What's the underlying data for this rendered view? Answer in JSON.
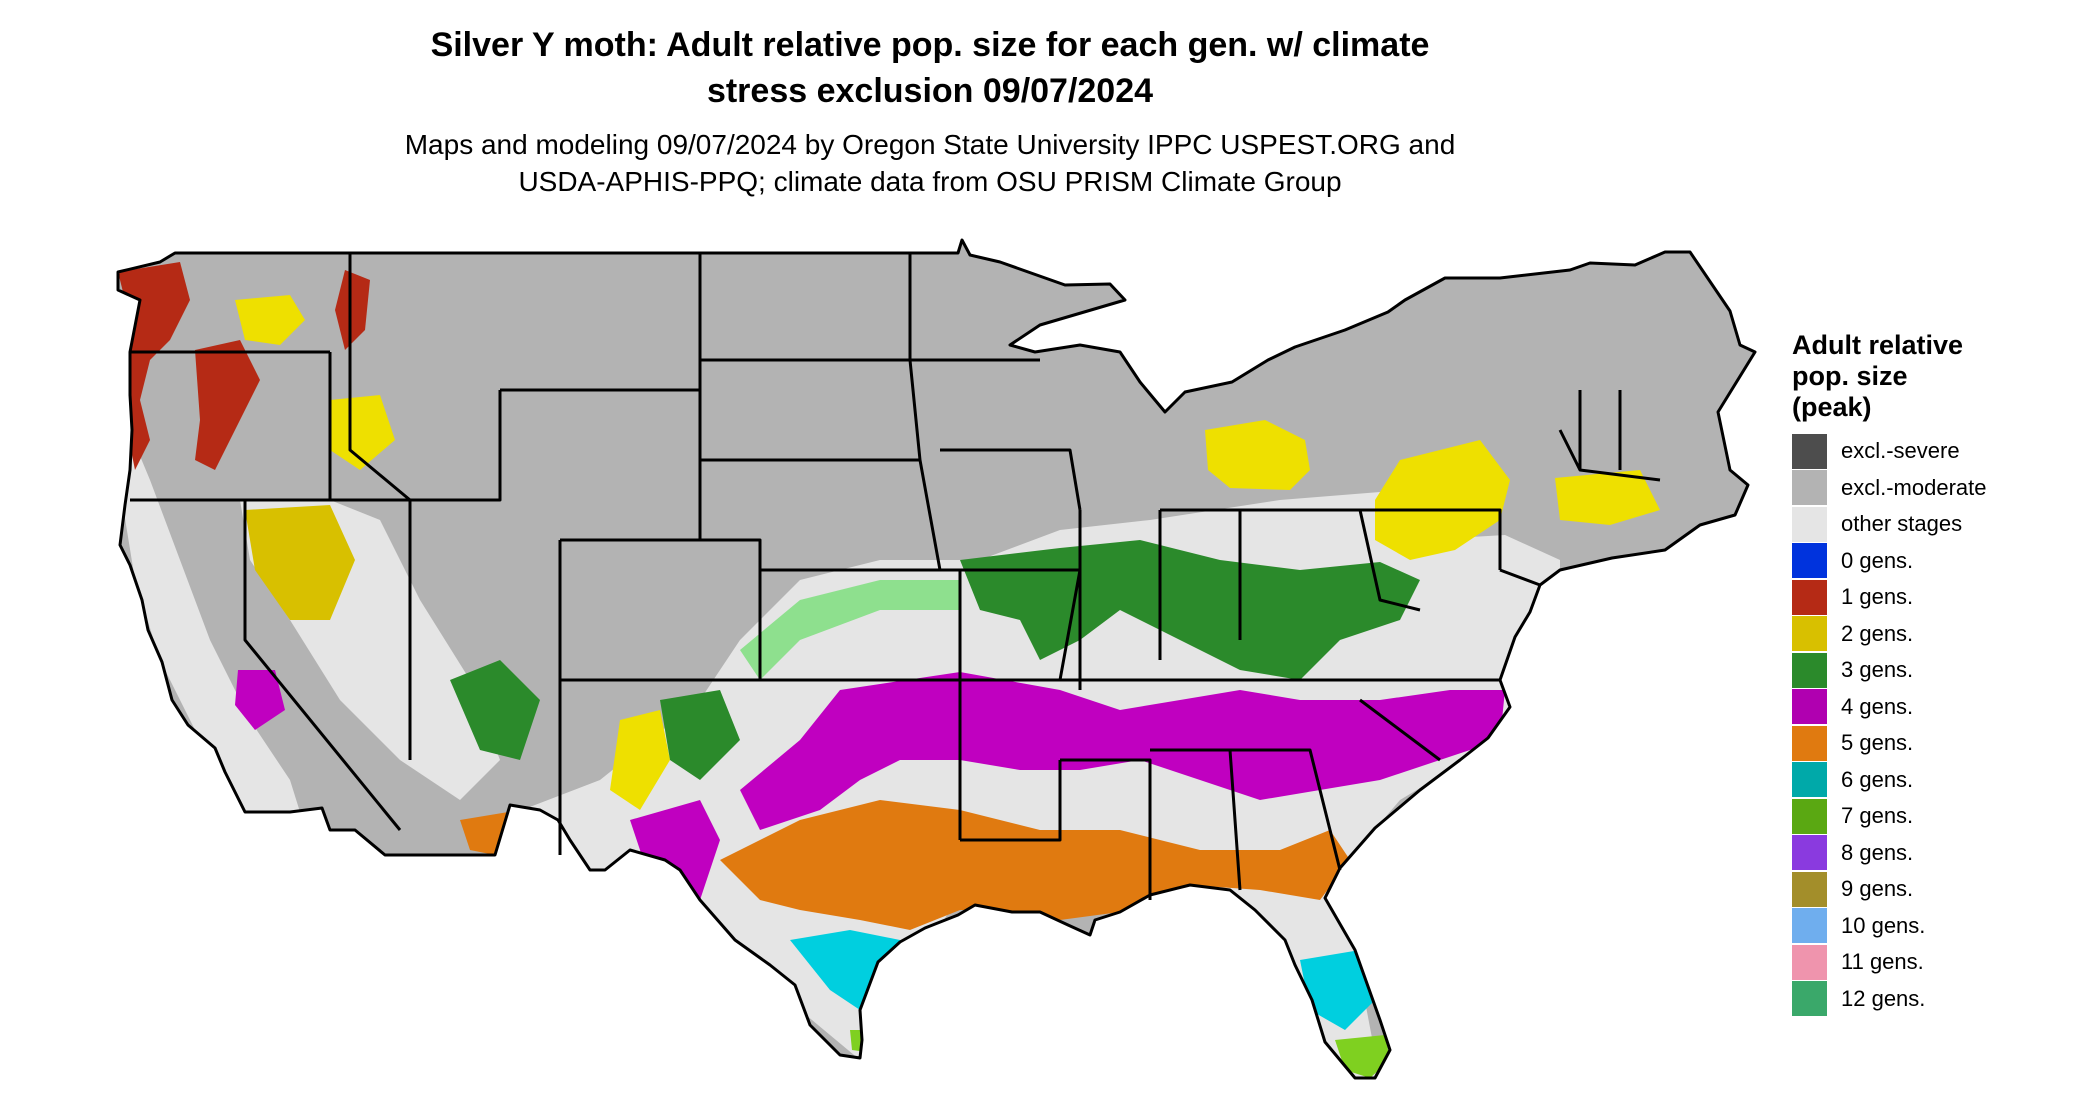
{
  "header": {
    "title_line1": "Silver Y moth: Adult relative pop. size for each gen. w/ climate",
    "title_line2": "stress exclusion 09/07/2024",
    "subtitle_line1": "Maps and modeling 09/07/2024 by Oregon State University IPPC USPEST.ORG and",
    "subtitle_line2": "USDA-APHIS-PPQ; climate data from OSU PRISM Climate Group"
  },
  "legend": {
    "title_line1": "Adult relative",
    "title_line2": "pop. size",
    "title_line3": "(peak)",
    "items": [
      {
        "label": "excl.-severe",
        "color": "#4d4d4d"
      },
      {
        "label": "excl.-moderate",
        "color": "#b3b3b3"
      },
      {
        "label": "other stages",
        "color": "#e5e5e5"
      },
      {
        "label": "0 gens.",
        "color": "#0033dd"
      },
      {
        "label": "1 gens.",
        "color": "#b52a15"
      },
      {
        "label": "2 gens.",
        "color": "#d8c000"
      },
      {
        "label": "3 gens.",
        "color": "#2b8a2b"
      },
      {
        "label": "4 gens.",
        "color": "#b000b0"
      },
      {
        "label": "5 gens.",
        "color": "#e07a10"
      },
      {
        "label": "6 gens.",
        "color": "#00a9a9"
      },
      {
        "label": "7 gens.",
        "color": "#5aa812"
      },
      {
        "label": "8 gens.",
        "color": "#8a3adf"
      },
      {
        "label": "9 gens.",
        "color": "#a38e2a"
      },
      {
        "label": "10 gens.",
        "color": "#6faeee"
      },
      {
        "label": "11 gens.",
        "color": "#ef94ad"
      },
      {
        "label": "12 gens.",
        "color": "#3aa86a"
      }
    ]
  },
  "map_colors": {
    "excluded_moderate": "#b3b3b3",
    "excluded_severe": "#4d4d4d",
    "other_stages": "#e5e5e5",
    "gen1": "#b52a15",
    "gen2": "#eee000",
    "gen2_dark": "#d8c000",
    "gen3": "#2b8a2b",
    "gen3_light": "#8ee08e",
    "gen4": "#c000c0",
    "gen5": "#e07a10",
    "gen6": "#00cfdf",
    "gen7": "#7fd020",
    "border": "#000000"
  }
}
